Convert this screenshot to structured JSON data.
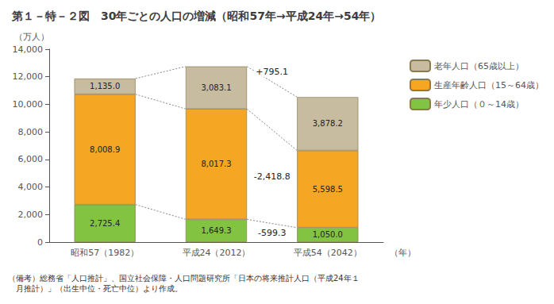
{
  "chart_data": {
    "type": "bar",
    "title": "第１－特－２図　30年ごとの人口の増減（昭和57年→平成24年→54年）",
    "ylabel": "（万人）",
    "xlabel": "（年）",
    "categories": [
      "昭和57（1982）",
      "平成24（2012）",
      "平成54（2042）"
    ],
    "series": [
      {
        "name": "年少人口（０～14歳）",
        "color": "#82c341",
        "values": [
          2725.4,
          1649.3,
          1050.0
        ],
        "value_labels": [
          "2,725.4",
          "1,649.3",
          "1,050.0"
        ]
      },
      {
        "name": "生産年齢人口（15～64歳）",
        "color": "#f5a623",
        "values": [
          8008.9,
          8017.3,
          5598.5
        ],
        "value_labels": [
          "8,008.9",
          "8,017.3",
          "5,598.5"
        ]
      },
      {
        "name": "老年人口（65歳以上）",
        "color": "#c8bca0",
        "values": [
          1135.0,
          3083.1,
          3878.2
        ],
        "value_labels": [
          "1,135.0",
          "3,083.1",
          "3,878.2"
        ]
      }
    ],
    "annotations": [
      "-599.3",
      "-2,418.8",
      "+795.1"
    ],
    "footnote": [
      "（備考）総務省「人口推計」、国立社会保障・人口問題研究所「日本の将来推計人口（平成24年１",
      "　月推計）」（出生中位・死亡中位）より作成。"
    ],
    "stacked": true,
    "data_labels": true,
    "grid": false,
    "legend": "right",
    "ylim": [
      0,
      14000
    ],
    "yticks": [
      0,
      {
        "value": 2000,
        "label": "2,000"
      },
      {
        "value": 4000,
        "label": "4,000"
      },
      {
        "value": 6000,
        "label": "6,000"
      },
      {
        "value": 8000,
        "label": "8,000"
      },
      {
        "value": 10000,
        "label": "10,000"
      },
      {
        "value": 12000,
        "label": "12,000"
      },
      {
        "value": 14000,
        "label": "14,000"
      }
    ]
  }
}
